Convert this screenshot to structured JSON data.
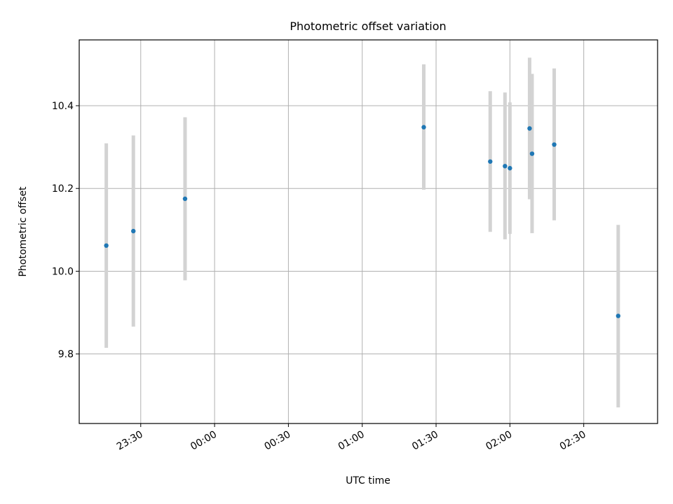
{
  "chart_data": {
    "type": "scatter",
    "title": "Photometric offset variation",
    "xlabel": "UTC time",
    "ylabel": "Photometric offset",
    "x_axis": {
      "kind": "time",
      "range": [
        "23:05",
        "03:00"
      ],
      "ticks": [
        "23:30",
        "00:00",
        "00:30",
        "01:00",
        "01:30",
        "02:00",
        "02:30"
      ]
    },
    "y_axis": {
      "range": [
        9.632,
        10.559
      ],
      "ticks": [
        9.8,
        10.0,
        10.2,
        10.4
      ],
      "tick_labels": [
        "9.8",
        "10.0",
        "10.2",
        "10.4"
      ]
    },
    "grid": true,
    "colors": {
      "point": "#1f77b4",
      "errorbar": "#d3d3d3",
      "grid": "#b0b0b0"
    },
    "series": [
      {
        "points": [
          {
            "x": "23:16",
            "y": 10.062,
            "lower": 9.815,
            "upper": 10.309
          },
          {
            "x": "23:27",
            "y": 10.097,
            "lower": 9.866,
            "upper": 10.328
          },
          {
            "x": "23:48",
            "y": 10.175,
            "lower": 9.978,
            "upper": 10.372
          },
          {
            "x": "01:25",
            "y": 10.348,
            "lower": 10.197,
            "upper": 10.5
          },
          {
            "x": "01:52",
            "y": 10.265,
            "lower": 10.095,
            "upper": 10.435
          },
          {
            "x": "01:58",
            "y": 10.254,
            "lower": 10.077,
            "upper": 10.432
          },
          {
            "x": "02:00",
            "y": 10.249,
            "lower": 10.09,
            "upper": 10.408
          },
          {
            "x": "02:08",
            "y": 10.345,
            "lower": 10.174,
            "upper": 10.516
          },
          {
            "x": "02:09",
            "y": 10.284,
            "lower": 10.092,
            "upper": 10.477
          },
          {
            "x": "02:18",
            "y": 10.306,
            "lower": 10.123,
            "upper": 10.49
          },
          {
            "x": "02:44",
            "y": 9.892,
            "lower": 9.671,
            "upper": 10.112
          }
        ]
      }
    ]
  }
}
